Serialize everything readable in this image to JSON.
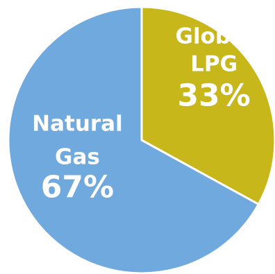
{
  "chart_data": {
    "type": "pie",
    "title": "",
    "start_angle_deg": 0,
    "direction": "clockwise",
    "slices": [
      {
        "label_lines": [
          "Global",
          "LPG"
        ],
        "value": 33,
        "value_label": "33%",
        "color": "#c7b71b"
      },
      {
        "label_lines": [
          "Natural",
          "Gas"
        ],
        "value": 67,
        "value_label": "67%",
        "color": "#6fa9dd"
      }
    ]
  }
}
